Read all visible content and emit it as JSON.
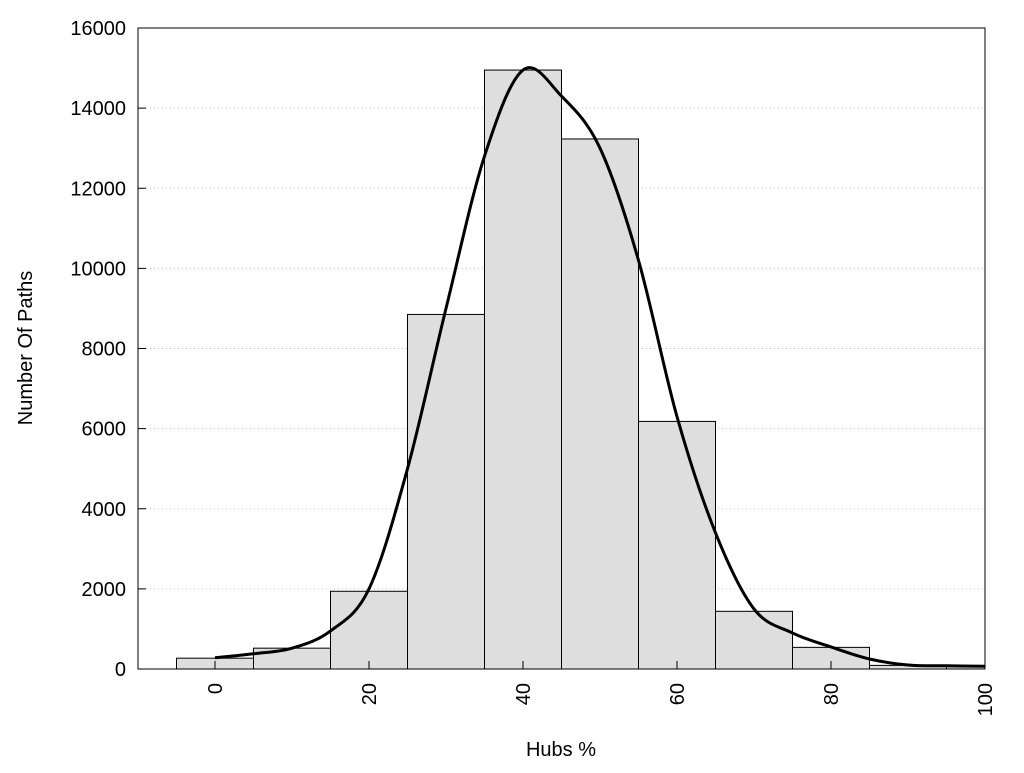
{
  "chart_data": {
    "type": "bar",
    "title": "",
    "xlabel": "Hubs %",
    "ylabel": "Number Of Paths",
    "xlim": [
      -10,
      100
    ],
    "ylim": [
      0,
      16000
    ],
    "grid": "horizontal dotted",
    "bar_width": 10,
    "x_ticks": [
      0,
      20,
      40,
      60,
      80,
      100
    ],
    "y_ticks": [
      0,
      2000,
      4000,
      6000,
      8000,
      10000,
      12000,
      14000,
      16000
    ],
    "bars": {
      "x": [
        0,
        10,
        20,
        30,
        40,
        50,
        60,
        70,
        80,
        90,
        100
      ],
      "values": [
        270,
        520,
        1940,
        8850,
        14950,
        13230,
        6180,
        1440,
        540,
        90,
        60
      ],
      "color": "#dedede"
    },
    "curve": {
      "type": "line",
      "x": [
        0,
        5,
        10,
        15,
        20,
        25,
        30,
        35,
        40,
        45,
        50,
        55,
        60,
        65,
        70,
        75,
        80,
        85,
        90,
        95,
        100
      ],
      "values": [
        280,
        380,
        520,
        950,
        2000,
        5000,
        9000,
        12800,
        14950,
        14300,
        13000,
        10200,
        6300,
        3400,
        1500,
        900,
        550,
        250,
        100,
        80,
        70
      ],
      "color": "#000000"
    }
  }
}
